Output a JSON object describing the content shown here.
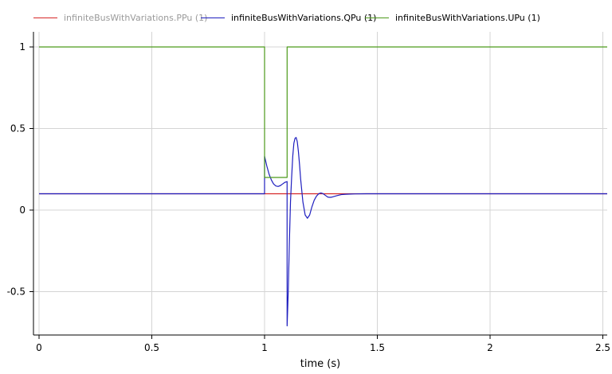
{
  "legend": [
    {
      "label": "infiniteBusWithVariations.PPu (1)",
      "color": "#d62728",
      "dimmed": true
    },
    {
      "label": "infiniteBusWithVariations.QPu (1)",
      "color": "#1f1fbf",
      "dimmed": false
    },
    {
      "label": "infiniteBusWithVariations.UPu (1)",
      "color": "#4c9a1a",
      "dimmed": false
    }
  ],
  "chart_data": {
    "type": "line",
    "xlabel": "time (s)",
    "ylabel": "",
    "xlim": [
      0,
      2.52
    ],
    "ylim": [
      -0.76,
      1.08
    ],
    "xticks": [
      0,
      0.5,
      1,
      1.5,
      2,
      2.5
    ],
    "xtick_labels": [
      "0",
      "0.5",
      "1",
      "1.5",
      "2",
      "2.5"
    ],
    "yticks": [
      -0.5,
      0,
      0.5,
      1
    ],
    "ytick_labels": [
      "-0.5",
      "0",
      "0.5",
      "1"
    ],
    "grid": true,
    "series": [
      {
        "name": "infiniteBusWithVariations.PPu (1)",
        "color": "#d62728",
        "x": [
          0,
          1.0,
          1.0,
          1.1,
          1.1,
          2.52
        ],
        "y": [
          0.1,
          0.1,
          0.1,
          0.1,
          0.1,
          0.1
        ]
      },
      {
        "name": "infiniteBusWithVariations.QPu (1)",
        "color": "#1f1fbf",
        "x": [
          0,
          0.9999,
          1.0,
          1.01,
          1.02,
          1.03,
          1.04,
          1.05,
          1.06,
          1.07,
          1.08,
          1.09,
          1.0999,
          1.1,
          1.105,
          1.11,
          1.115,
          1.12,
          1.125,
          1.13,
          1.135,
          1.14,
          1.145,
          1.15,
          1.155,
          1.16,
          1.17,
          1.18,
          1.19,
          1.2,
          1.21,
          1.22,
          1.23,
          1.24,
          1.25,
          1.26,
          1.27,
          1.28,
          1.29,
          1.3,
          1.32,
          1.34,
          1.36,
          1.38,
          1.4,
          1.45,
          1.5,
          1.6,
          1.7,
          1.8,
          2.0,
          2.52
        ],
        "y": [
          0.1,
          0.1,
          0.33,
          0.27,
          0.22,
          0.185,
          0.16,
          0.148,
          0.145,
          0.15,
          0.16,
          0.17,
          0.175,
          -0.71,
          -0.5,
          -0.2,
          0.05,
          0.2,
          0.33,
          0.41,
          0.44,
          0.445,
          0.42,
          0.36,
          0.28,
          0.19,
          0.05,
          -0.03,
          -0.05,
          -0.03,
          0.02,
          0.06,
          0.085,
          0.1,
          0.105,
          0.1,
          0.09,
          0.08,
          0.078,
          0.08,
          0.088,
          0.095,
          0.097,
          0.098,
          0.099,
          0.1,
          0.1,
          0.1,
          0.1,
          0.1,
          0.1,
          0.1
        ]
      },
      {
        "name": "infiniteBusWithVariations.UPu (1)",
        "color": "#4c9a1a",
        "x": [
          0,
          1.0,
          1.0,
          1.1,
          1.1,
          2.52
        ],
        "y": [
          1.0,
          1.0,
          0.2,
          0.2,
          1.0,
          1.0
        ]
      }
    ]
  }
}
